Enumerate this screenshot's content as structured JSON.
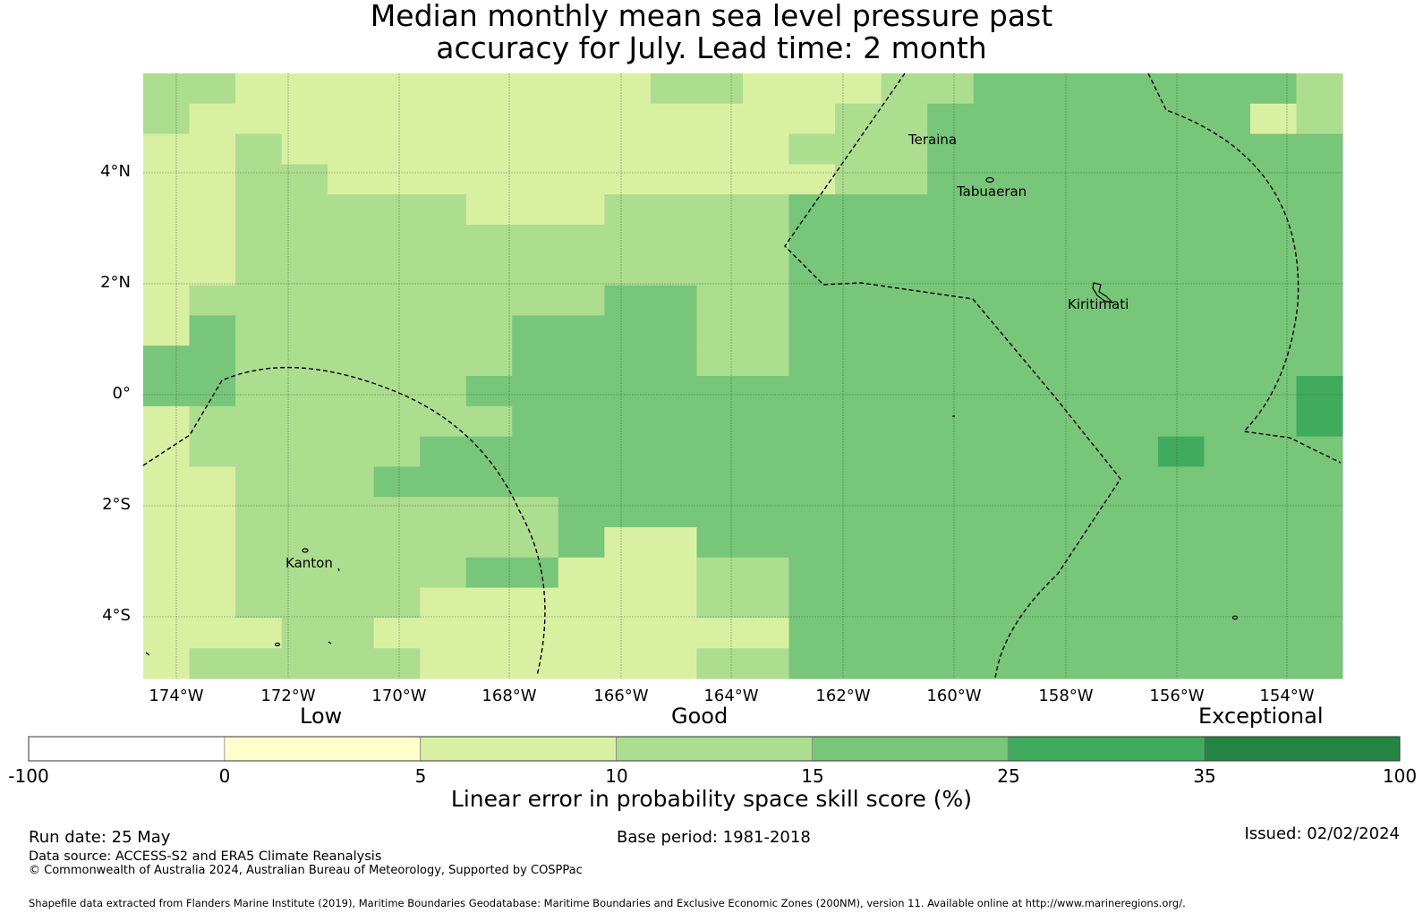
{
  "title": {
    "line1": "Median monthly mean sea level pressure past",
    "line2": "accuracy for July. Lead time: 2 month"
  },
  "map": {
    "lat_labels": [
      "4°N",
      "2°N",
      "0°",
      "2°S",
      "4°S"
    ],
    "lon_labels": [
      "174°W",
      "172°W",
      "170°W",
      "168°W",
      "166°W",
      "164°W",
      "162°W",
      "160°W",
      "158°W",
      "156°W",
      "154°W"
    ],
    "places": [
      {
        "name": "Teraina"
      },
      {
        "name": "Tabuaeran"
      },
      {
        "name": "Kiritimati"
      },
      {
        "name": "Kanton"
      }
    ]
  },
  "legend": {
    "categories": [
      "Low",
      "Good",
      "Exceptional"
    ],
    "ticks": [
      "-100",
      "0",
      "5",
      "10",
      "15",
      "25",
      "35",
      "100"
    ],
    "colors": [
      "#ffffff",
      "#ffffcc",
      "#d9f0a3",
      "#addd8e",
      "#78c679",
      "#41ab5d",
      "#238443"
    ],
    "axis_title": "Linear error in probability space skill score (%)"
  },
  "footer": {
    "run_date": "Run date: 25 May",
    "base_period": "Base period: 1981-2018",
    "issued": "Issued: 02/02/2024",
    "data_source": "Data source: ACCESS-S2 and ERA5 Climate Reanalysis",
    "copyright": "© Commonwealth of Australia 2024, Australian Bureau of Meteorology, Supported by COSPPac",
    "shapefile": "Shapefile data extracted from Flanders Marine Institute (2019), Maritime Boundaries Geodatabase: Maritime Boundaries and Exclusive Economic Zones (200NM), version 11. Available online at http://www.marineregions.org/."
  }
}
